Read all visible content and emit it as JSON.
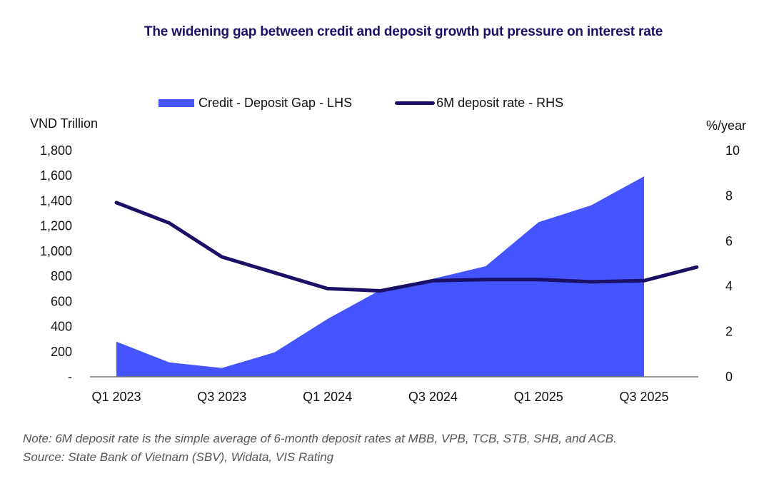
{
  "chart_data": {
    "type": "area+line",
    "title": "The widening gap between credit and deposit growth put pressure on interest rate",
    "categories": [
      "Q1 2023",
      "Q2 2023",
      "Q3 2023",
      "Q4 2023",
      "Q1 2024",
      "Q2 2024",
      "Q3 2024",
      "Q4 2024",
      "Q1 2025",
      "Q2 2025",
      "Q3 2025",
      "Q4 2025"
    ],
    "x_tick_labels": [
      "Q1 2023",
      "Q3 2023",
      "Q1 2024",
      "Q3 2024",
      "Q1 2025",
      "Q3 2025"
    ],
    "series": [
      {
        "name": "Credit - Deposit Gap - LHS",
        "type": "area",
        "axis": "left",
        "color": "#4455ff",
        "values": [
          280,
          115,
          70,
          195,
          460,
          690,
          780,
          880,
          1230,
          1365,
          1595,
          null
        ]
      },
      {
        "name": "6M deposit rate - RHS",
        "type": "line",
        "axis": "right",
        "color": "#1a1065",
        "values": [
          7.7,
          6.8,
          5.3,
          4.6,
          3.9,
          3.8,
          4.25,
          4.3,
          4.3,
          4.2,
          4.25,
          4.85
        ]
      }
    ],
    "ylabel_left": "VND Trillion",
    "ylabel_right": "%/year",
    "ylim_left": [
      0,
      1800
    ],
    "ylim_right": [
      0,
      10
    ],
    "yticks_left": [
      "-",
      "200",
      "400",
      "600",
      "800",
      "1,000",
      "1,200",
      "1,400",
      "1,600",
      "1,800"
    ],
    "yticks_right": [
      "0",
      "2",
      "4",
      "6",
      "8",
      "10"
    ],
    "legend_position": "top-center",
    "grid": false
  },
  "note": "Note: 6M deposit rate is the simple average of 6-month deposit rates at MBB, VPB, TCB, STB, SHB, and ACB.",
  "source": "Source: State Bank of Vietnam (SBV), Widata, VIS Rating"
}
